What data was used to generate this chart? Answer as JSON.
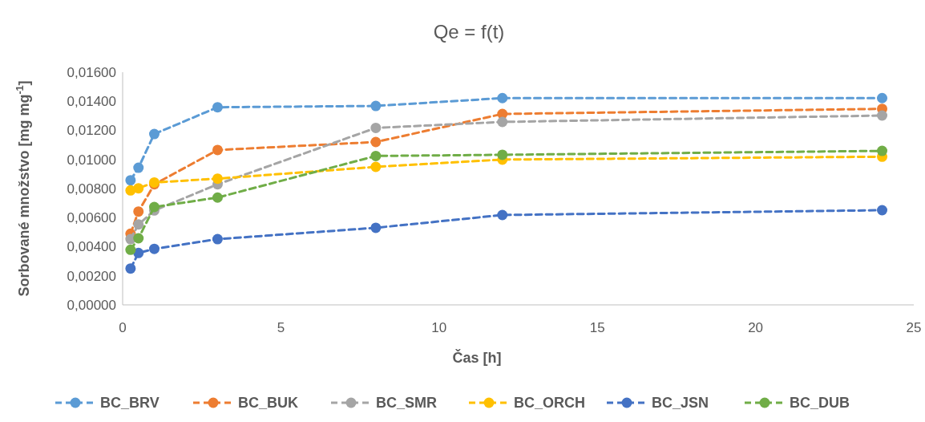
{
  "chart_data": {
    "type": "line",
    "title": "Qe = f(t)",
    "xlabel": "Čas [h]",
    "ylabel": "Sorbované množstvo [mg mg$^{-1}$]",
    "x": [
      0.25,
      0.5,
      1,
      3,
      8,
      12,
      24
    ],
    "xlim": [
      0,
      25
    ],
    "xticks": [
      0,
      5,
      10,
      15,
      20,
      25
    ],
    "ylim": [
      0,
      0.016
    ],
    "yticks": [
      {
        "value": 0,
        "label": "0,00000"
      },
      {
        "value": 0.002,
        "label": "0,00200"
      },
      {
        "value": 0.004,
        "label": "0,00400"
      },
      {
        "value": 0.006,
        "label": "0,00600"
      },
      {
        "value": 0.008,
        "label": "0,00800"
      },
      {
        "value": 0.01,
        "label": "0,01000"
      },
      {
        "value": 0.012,
        "label": "0,01200"
      },
      {
        "value": 0.014,
        "label": "0,01400"
      },
      {
        "value": 0.016,
        "label": "0,01600"
      }
    ],
    "grid": false,
    "legend": "bottom",
    "marker": "circle",
    "line_style": "dashed",
    "series": [
      {
        "name": "BC_BRV",
        "color": "#5b9bd5",
        "values": [
          0.00857,
          0.00943,
          0.01175,
          0.01359,
          0.01368,
          0.01422,
          0.01422
        ]
      },
      {
        "name": "BC_BUK",
        "color": "#ed7d31",
        "values": [
          0.00489,
          0.00642,
          0.00829,
          0.01065,
          0.0112,
          0.01313,
          0.01348
        ]
      },
      {
        "name": "BC_SMR",
        "color": "#a5a5a5",
        "values": [
          0.00452,
          0.00553,
          0.00649,
          0.00829,
          0.01217,
          0.01258,
          0.01302
        ]
      },
      {
        "name": "BC_ORCH",
        "color": "#ffc000",
        "values": [
          0.00787,
          0.00802,
          0.00842,
          0.00868,
          0.00949,
          0.00999,
          0.01019
        ]
      },
      {
        "name": "BC_JSN",
        "color": "#4472c4",
        "values": [
          0.0025,
          0.00357,
          0.00385,
          0.00452,
          0.0053,
          0.00618,
          0.00651
        ]
      },
      {
        "name": "BC_DUB",
        "color": "#70ad47",
        "values": [
          0.00379,
          0.00458,
          0.00673,
          0.00738,
          0.01024,
          0.01032,
          0.01059
        ]
      }
    ]
  }
}
